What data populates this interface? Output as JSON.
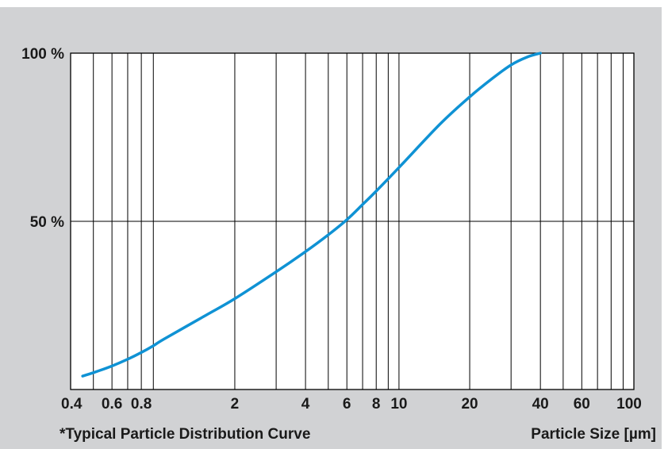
{
  "chart_data": {
    "type": "line",
    "x_scale": "log",
    "xlim": [
      0.4,
      100
    ],
    "ylim": [
      0,
      100
    ],
    "grid": true,
    "x_grid_lines": [
      0.5,
      0.6,
      0.7,
      0.8,
      0.9,
      2,
      3,
      4,
      5,
      6,
      7,
      8,
      9,
      10,
      20,
      30,
      40,
      50,
      60,
      70,
      80,
      90
    ],
    "x_tick_labels": [
      {
        "value": 0.4,
        "label": "0.4"
      },
      {
        "value": 0.6,
        "label": "0.6"
      },
      {
        "value": 0.8,
        "label": "0.8"
      },
      {
        "value": 2,
        "label": "2"
      },
      {
        "value": 4,
        "label": "4"
      },
      {
        "value": 6,
        "label": "6"
      },
      {
        "value": 8,
        "label": "8"
      },
      {
        "value": 10,
        "label": "10"
      },
      {
        "value": 20,
        "label": "20"
      },
      {
        "value": 40,
        "label": "40"
      },
      {
        "value": 60,
        "label": "60"
      },
      {
        "value": 100,
        "label": "100"
      }
    ],
    "y_tick_labels": [
      {
        "value": 100,
        "label": "100 %"
      },
      {
        "value": 50,
        "label": "50 %"
      }
    ],
    "series": [
      {
        "color": "#0f92d4",
        "x": [
          0.45,
          0.5,
          0.6,
          0.7,
          0.8,
          0.9,
          1,
          1.5,
          2,
          3,
          4,
          5,
          6,
          7,
          8,
          10,
          15,
          20,
          25,
          30,
          35,
          40
        ],
        "y": [
          4,
          5,
          7,
          9,
          11,
          13,
          15,
          22,
          27,
          35,
          41,
          46,
          50.5,
          55,
          59,
          66,
          79,
          87,
          92.5,
          96.5,
          98.8,
          100
        ]
      }
    ],
    "title": "*Typical Particle Distribution Curve",
    "xlabel": "Particle Size [µm]"
  }
}
